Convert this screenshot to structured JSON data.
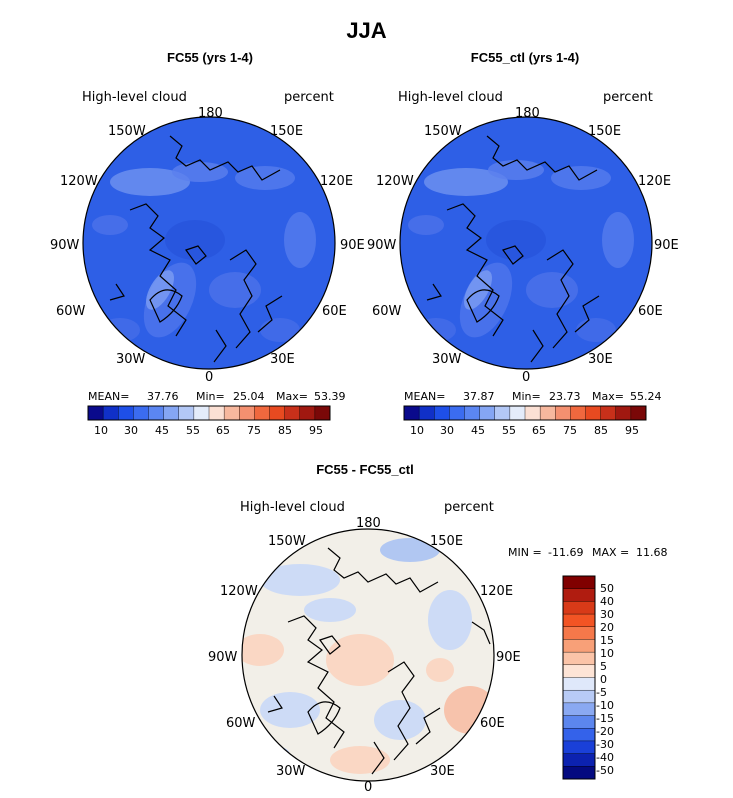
{
  "title": "JJA",
  "panels": [
    {
      "title": "FC55 (yrs 1-4)",
      "field": "High-level cloud",
      "units": "percent",
      "mean": "37.76",
      "min": "25.04",
      "max": "53.39",
      "stat_labels": {
        "mean": "MEAN=",
        "min": "Min=",
        "max": "Max="
      }
    },
    {
      "title": "FC55_ctl (yrs 1-4)",
      "field": "High-level cloud",
      "units": "percent",
      "mean": "37.87",
      "min": "23.73",
      "max": "55.24",
      "stat_labels": {
        "mean": "MEAN=",
        "min": "Min=",
        "max": "Max="
      }
    }
  ],
  "diff_panel": {
    "title": "FC55 - FC55_ctl",
    "field": "High-level cloud",
    "units": "percent",
    "min_label": "MIN =",
    "min": "-11.69",
    "max_label": "MAX =",
    "max": "11.68"
  },
  "longitude_labels": {
    "top": "180",
    "bottom": "0",
    "left": [
      "150W",
      "120W",
      "90W",
      "60W",
      "30W"
    ],
    "right": [
      "150E",
      "120E",
      "90E",
      "60E",
      "30E"
    ]
  },
  "abs_colorbar": {
    "tick_labels": [
      "10",
      "30",
      "45",
      "55",
      "65",
      "75",
      "85",
      "95"
    ],
    "colors": [
      "#0a0a8c",
      "#1030c8",
      "#1e4fe8",
      "#3b6cf0",
      "#5b86f2",
      "#85a6f4",
      "#b3c8f6",
      "#e4ecfa",
      "#fbe0d4",
      "#f7b89e",
      "#f49070",
      "#f0683e",
      "#e84a20",
      "#c8301a",
      "#a01810",
      "#7a0808"
    ]
  },
  "diff_colorbar": {
    "tick_labels": [
      "50",
      "40",
      "30",
      "20",
      "15",
      "10",
      "5",
      "0",
      "-5",
      "-10",
      "-15",
      "-20",
      "-30",
      "-40",
      "-50"
    ],
    "colors": [
      "#800000",
      "#b01c10",
      "#d83a18",
      "#f25424",
      "#f5784a",
      "#f8a078",
      "#fbc4a8",
      "#fde4d6",
      "#dfe8fa",
      "#b8cbf6",
      "#8aa9f2",
      "#5c86ee",
      "#3462ea",
      "#1a40d8",
      "#0c22b0",
      "#040a80"
    ]
  },
  "colors": {
    "ocean_base": "#2e5fe6",
    "diff_base": "#f2efe8"
  }
}
